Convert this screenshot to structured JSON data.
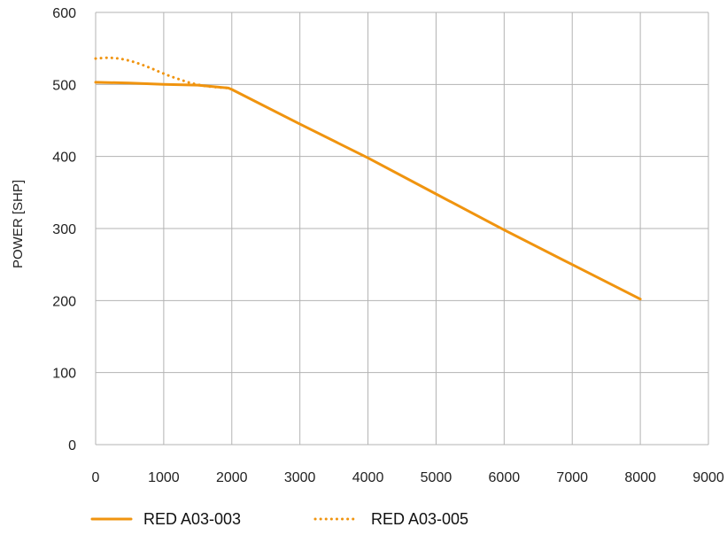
{
  "chart_data": {
    "type": "line",
    "title": "",
    "xlabel": "",
    "ylabel": "POWER  [SHP]",
    "xlim": [
      0,
      9000
    ],
    "ylim": [
      0,
      600
    ],
    "x_ticks": [
      0,
      1000,
      2000,
      3000,
      4000,
      5000,
      6000,
      7000,
      8000,
      9000
    ],
    "y_ticks": [
      0,
      100,
      200,
      300,
      400,
      500,
      600
    ],
    "x_tick_labels": [
      "0",
      "1000",
      "2000",
      "3000",
      "4000",
      "5000",
      "6000",
      "7000",
      "8000",
      "9000"
    ],
    "y_tick_labels": [
      "0",
      "100",
      "200",
      "300",
      "400",
      "500",
      "600"
    ],
    "grid": true,
    "legend_position": "bottom",
    "series": [
      {
        "name": "RED A03-003",
        "style": "solid",
        "color": "#f0940f",
        "x": [
          0,
          500,
          1000,
          1500,
          1950,
          2000,
          3000,
          4000,
          5000,
          6000,
          7000,
          8000
        ],
        "y": [
          503,
          502,
          500,
          499,
          495,
          493,
          445,
          398,
          348,
          298,
          250,
          202
        ]
      },
      {
        "name": "RED A03-005",
        "style": "dotted",
        "color": "#f0940f",
        "x": [
          0,
          200,
          400,
          600,
          800,
          1000,
          1200,
          1400,
          1600,
          1800,
          1950
        ],
        "y": [
          536,
          537,
          535,
          530,
          523,
          515,
          508,
          502,
          498,
          496,
          495
        ]
      }
    ]
  }
}
